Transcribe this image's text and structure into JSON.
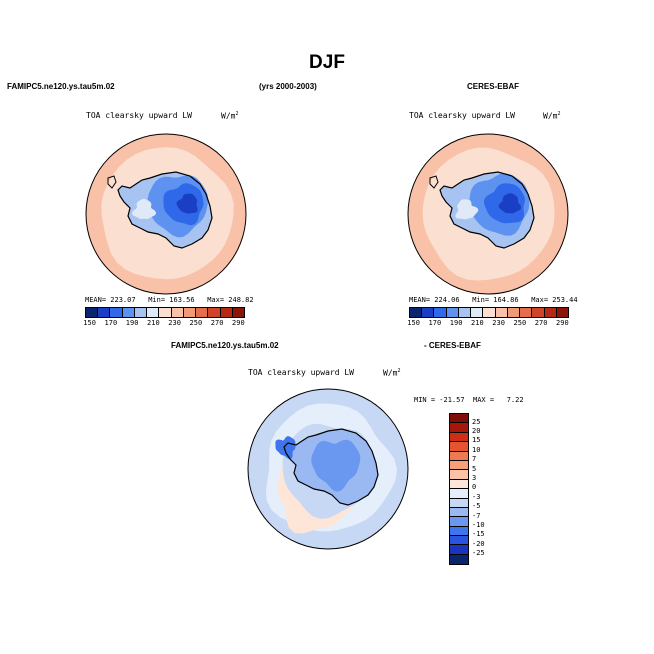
{
  "figure": {
    "title": "DJF"
  },
  "panels": [
    {
      "id": "model",
      "left_header": "FAMIPC5.ne120.ys.tau5m.02",
      "center_header": "(yrs 2000-2003)",
      "plot_title": "TOA clearsky upward LW",
      "units": "W/m",
      "units_exp": "2",
      "stats": "MEAN= 223.07   Min= 163.56   Max= 248.82",
      "colorbar_labels": [
        "150",
        "170",
        "190",
        "210",
        "230",
        "250",
        "270",
        "290"
      ]
    },
    {
      "id": "obs",
      "right_header": "CERES-EBAF",
      "plot_title": "TOA clearsky upward LW",
      "units": "W/m",
      "units_exp": "2",
      "stats": "MEAN= 224.06   Min= 164.86   Max= 253.44",
      "colorbar_labels": [
        "150",
        "170",
        "190",
        "210",
        "230",
        "250",
        "270",
        "290"
      ]
    },
    {
      "id": "diff",
      "left_header": "FAMIPC5.ne120.ys.tau5m.02",
      "right_header": "- CERES-EBAF",
      "plot_title": "TOA clearsky upward LW",
      "units": "W/m",
      "units_exp": "2",
      "stats": "MIN = -21.57  MAX =   7.22",
      "colorbar_labels": [
        "25",
        "20",
        "15",
        "10",
        "7",
        "5",
        "3",
        "0",
        "-3",
        "-5",
        "-7",
        "-10",
        "-15",
        "-20",
        "-25"
      ]
    }
  ],
  "colors": {
    "abs_scale": [
      "#08256e",
      "#1a3fc4",
      "#2f68e8",
      "#5d92f0",
      "#a6c3f2",
      "#dfe9f8",
      "#fbe0d2",
      "#f9c2a8",
      "#f19a76",
      "#e46e4c",
      "#cf4428",
      "#b52813",
      "#8a1508"
    ],
    "diff_scale": [
      "#08256e",
      "#1a34c0",
      "#2a53e0",
      "#3e74ec",
      "#6a98f0",
      "#9ab9f2",
      "#c7d8f5",
      "#e5eefb",
      "#fde5d8",
      "#fac3a8",
      "#f6a07a",
      "#ef7a52",
      "#e55331",
      "#cf2e16",
      "#a8160a",
      "#7e0e06"
    ]
  }
}
